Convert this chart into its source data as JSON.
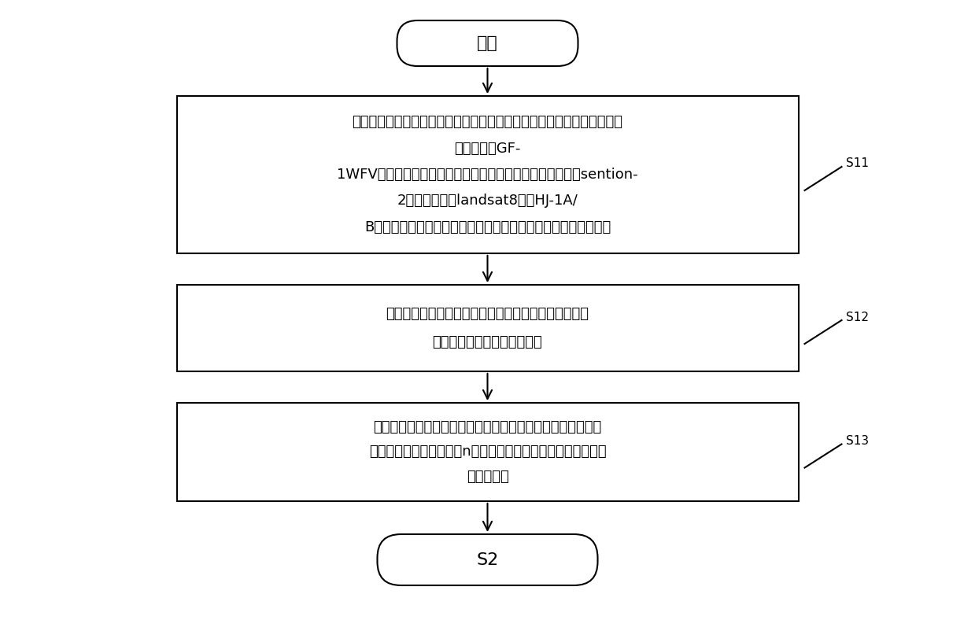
{
  "background_color": "#ffffff",
  "start_label": "开始",
  "end_label": "S2",
  "box1_text_lines": [
    "根据研究区的位置和范围，选择我国白主研发的具有高时间分辨率和高空",
    "间分辨率的GF-",
    "1WFV数据，如果出现数据源不能完全覆盖的情况，考虑使用sention-",
    "2，高分二号，landsat8或者HJ-1A/",
    "B代替；同时调查实施例范围的农作物类型以及各自的生长物候期"
  ],
  "box2_text_lines": [
    "对收集的数据进行遥感影像的处理，如果出现替代数据",
    "，需要重采样统一空间分辨率"
  ],
  "box3_text_lines": [
    "对样本的采集需要考虑其代表性、典型性、时效性，通过建立",
    "规则格网将研究区划分为n块面积相同的区域，在各个区域内选",
    "取作物样本"
  ],
  "label_s11": "S11",
  "label_s12": "S12",
  "label_s13": "S13",
  "box_border_color": "#000000",
  "box_fill_color": "#ffffff",
  "arrow_color": "#000000",
  "text_color": "#000000",
  "font_size_box": 13,
  "font_size_label": 11,
  "font_size_start_end": 16,
  "fig_width": 12.39,
  "fig_height": 8.16,
  "dpi": 100
}
